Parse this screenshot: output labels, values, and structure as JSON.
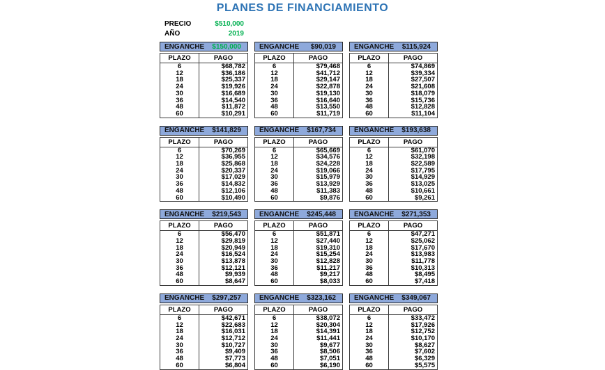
{
  "title": "PLANES DE FINANCIAMIENTO",
  "info": {
    "precio_label": "PRECIO",
    "precio_value": "$510,000",
    "anio_label": "AÑO",
    "anio_value": "2019"
  },
  "colors": {
    "title_blue": "#2E74B5",
    "header_fill": "#8EA9DB",
    "value_green": "#00B050"
  },
  "table_headers": {
    "enganche_label": "ENGANCHE",
    "plazo": "PLAZO",
    "pago": "PAGO"
  },
  "plazos": [
    "6",
    "12",
    "18",
    "24",
    "30",
    "36",
    "48",
    "60"
  ],
  "plans": [
    {
      "enganche": "$150,000",
      "amount_color": "#00B050",
      "pagos": [
        "$68,782",
        "$36,186",
        "$25,337",
        "$19,926",
        "$16,689",
        "$14,540",
        "$11,872",
        "$10,291"
      ]
    },
    {
      "enganche": "$90,019",
      "pagos": [
        "$79,468",
        "$41,712",
        "$29,147",
        "$22,878",
        "$19,130",
        "$16,640",
        "$13,550",
        "$11,719"
      ]
    },
    {
      "enganche": "$115,924",
      "pagos": [
        "$74,869",
        "$39,334",
        "$27,507",
        "$21,608",
        "$18,079",
        "$15,736",
        "$12,828",
        "$11,104"
      ]
    },
    {
      "enganche": "$141,829",
      "pagos": [
        "$70,269",
        "$36,955",
        "$25,868",
        "$20,337",
        "$17,029",
        "$14,832",
        "$12,106",
        "$10,490"
      ]
    },
    {
      "enganche": "$167,734",
      "pagos": [
        "$65,669",
        "$34,576",
        "$24,228",
        "$19,066",
        "$15,979",
        "$13,929",
        "$11,383",
        "$9,876"
      ]
    },
    {
      "enganche": "$193,638",
      "pagos": [
        "$61,070",
        "$32,198",
        "$22,589",
        "$17,795",
        "$14,929",
        "$13,025",
        "$10,661",
        "$9,261"
      ]
    },
    {
      "enganche": "$219,543",
      "pagos": [
        "$56,470",
        "$29,819",
        "$20,949",
        "$16,524",
        "$13,878",
        "$12,121",
        "$9,939",
        "$8,647"
      ]
    },
    {
      "enganche": "$245,448",
      "pagos": [
        "$51,871",
        "$27,440",
        "$19,310",
        "$15,254",
        "$12,828",
        "$11,217",
        "$9,217",
        "$8,033"
      ]
    },
    {
      "enganche": "$271,353",
      "pagos": [
        "$47,271",
        "$25,062",
        "$17,670",
        "$13,983",
        "$11,778",
        "$10,313",
        "$8,495",
        "$7,418"
      ]
    },
    {
      "enganche": "$297,257",
      "pagos": [
        "$42,671",
        "$22,683",
        "$16,031",
        "$12,712",
        "$10,727",
        "$9,409",
        "$7,773",
        "$6,804"
      ]
    },
    {
      "enganche": "$323,162",
      "pagos": [
        "$38,072",
        "$20,304",
        "$14,391",
        "$11,441",
        "$9,677",
        "$8,506",
        "$7,051",
        "$6,190"
      ]
    },
    {
      "enganche": "$349,067",
      "pagos": [
        "$33,472",
        "$17,926",
        "$12,752",
        "$10,170",
        "$8,627",
        "$7,602",
        "$6,329",
        "$5,575"
      ]
    }
  ]
}
